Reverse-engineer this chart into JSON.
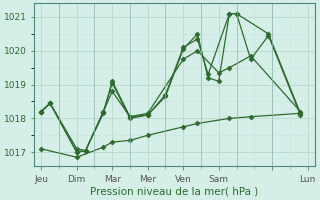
{
  "xlabel": "Pression niveau de la mer( hPa )",
  "bg_color": "#d5eee8",
  "grid_major_color": "#b8d8d0",
  "grid_minor_color": "#c8e5de",
  "line_color": "#2d6b2d",
  "ylim": [
    1016.6,
    1021.4
  ],
  "yticks": [
    1017,
    1018,
    1019,
    1020,
    1021
  ],
  "day_positions": [
    0.0,
    1.0,
    2.0,
    3.0,
    4.0,
    5.0,
    6.5,
    7.5
  ],
  "day_labels": [
    "Jeu",
    "Dim",
    "Mar",
    "Mer",
    "Ven",
    "Sam",
    "",
    "Lun"
  ],
  "vline_positions": [
    0.5,
    1.5,
    2.5,
    3.5,
    4.5,
    5.5,
    6.0,
    6.5,
    7.0
  ],
  "line1_x": [
    0.0,
    0.25,
    1.0,
    1.25,
    1.75,
    2.0,
    2.5,
    3.0,
    3.5,
    4.0,
    4.4,
    4.7,
    5.0,
    5.3,
    5.5,
    5.9,
    6.4,
    7.3
  ],
  "line1_y": [
    1018.2,
    1018.45,
    1017.0,
    1017.05,
    1018.15,
    1019.1,
    1018.05,
    1018.1,
    1018.65,
    1020.05,
    1020.5,
    1019.2,
    1019.1,
    1021.1,
    1021.1,
    1019.75,
    1020.45,
    1018.1
  ],
  "line2_x": [
    0.0,
    0.25,
    1.0,
    1.25,
    1.75,
    2.0,
    2.5,
    3.0,
    3.5,
    4.0,
    4.4,
    4.7,
    5.3,
    5.5,
    6.4,
    7.3
  ],
  "line2_y": [
    1018.2,
    1018.45,
    1017.0,
    1017.05,
    1018.2,
    1019.05,
    1018.0,
    1018.1,
    1018.7,
    1020.1,
    1020.35,
    1019.3,
    1021.1,
    1021.1,
    1020.5,
    1018.15
  ],
  "line3_x": [
    0.0,
    0.25,
    1.0,
    1.25,
    1.75,
    2.0,
    2.5,
    3.0,
    4.0,
    4.4,
    5.0,
    5.3,
    5.9,
    7.3
  ],
  "line3_y": [
    1018.2,
    1018.45,
    1017.1,
    1017.05,
    1018.2,
    1018.8,
    1018.05,
    1018.15,
    1019.75,
    1020.0,
    1019.35,
    1019.5,
    1019.85,
    1018.2
  ],
  "line4_x": [
    0.0,
    1.0,
    1.75,
    2.0,
    2.5,
    3.0,
    4.0,
    4.4,
    5.3,
    5.9,
    7.3
  ],
  "line4_y": [
    1017.1,
    1016.85,
    1017.15,
    1017.3,
    1017.35,
    1017.5,
    1017.75,
    1017.85,
    1018.0,
    1018.05,
    1018.15
  ]
}
